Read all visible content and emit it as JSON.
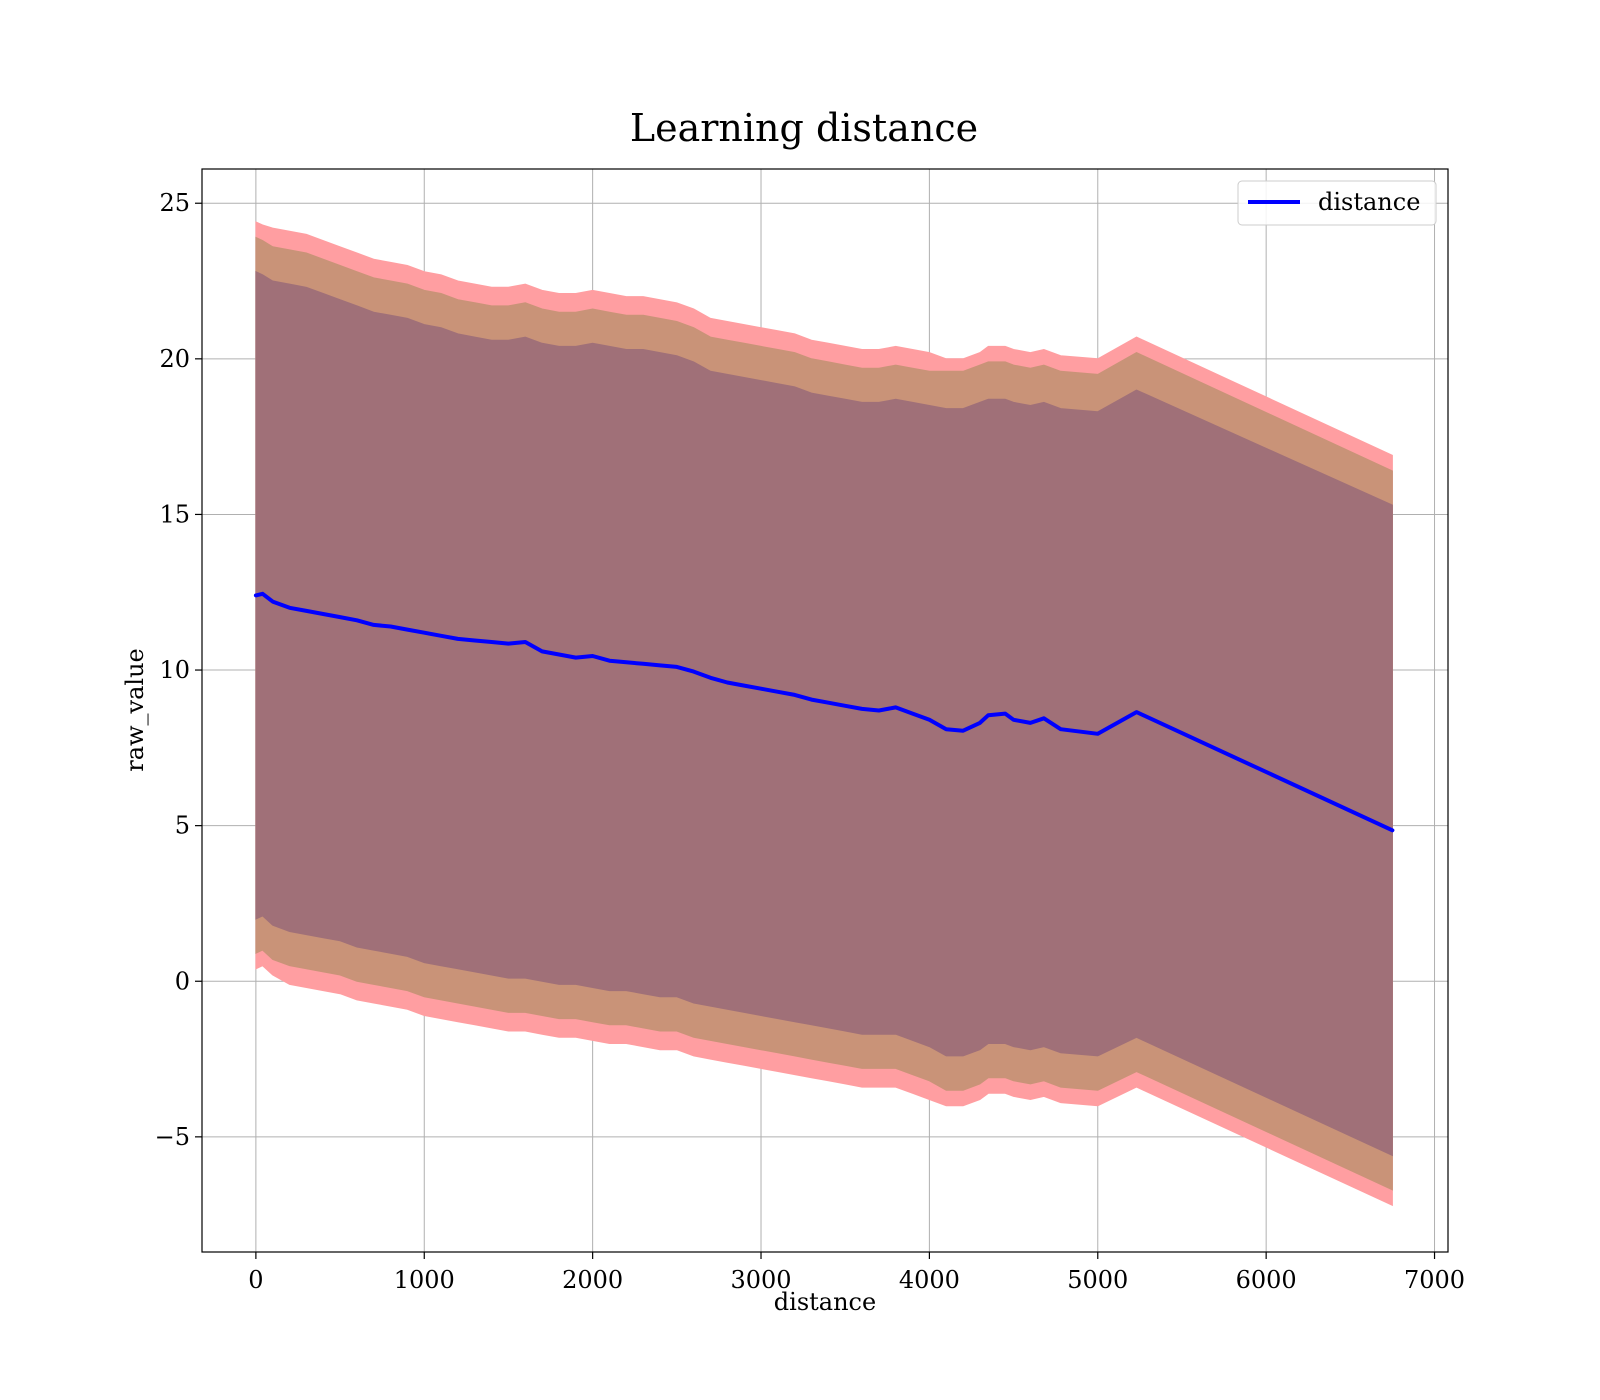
{
  "chart_data": {
    "type": "line",
    "title": "Learning distance",
    "xlabel": "distance",
    "ylabel": "raw_value",
    "xlim": [
      -320,
      7080
    ],
    "ylim": [
      -8.7,
      26.1
    ],
    "xticks": [
      0,
      1000,
      2000,
      3000,
      4000,
      5000,
      6000,
      7000
    ],
    "xtick_labels": [
      "0",
      "1000",
      "2000",
      "3000",
      "4000",
      "5000",
      "6000",
      "7000"
    ],
    "yticks": [
      -5,
      0,
      5,
      10,
      15,
      20,
      25
    ],
    "ytick_labels": [
      "−5",
      "0",
      "5",
      "10",
      "15",
      "20",
      "25"
    ],
    "grid": true,
    "legend": {
      "placement": "top-right",
      "entries": [
        "distance"
      ]
    },
    "colors": {
      "line": "#0000ff",
      "band_outer": "#ff9ea1",
      "band_middle": "#c99378",
      "band_inner": "#a07078",
      "grid": "#b0b0b0"
    },
    "x": [
      0,
      40,
      100,
      200,
      300,
      400,
      500,
      600,
      700,
      800,
      900,
      1000,
      1100,
      1200,
      1300,
      1400,
      1500,
      1600,
      1700,
      1800,
      1900,
      2000,
      2100,
      2200,
      2300,
      2400,
      2500,
      2600,
      2700,
      2800,
      2900,
      3000,
      3100,
      3200,
      3300,
      3400,
      3500,
      3600,
      3700,
      3800,
      3900,
      4000,
      4100,
      4200,
      4300,
      4350,
      4450,
      4500,
      4600,
      4680,
      4780,
      5000,
      5230,
      6750
    ],
    "series": [
      {
        "name": "distance",
        "values": [
          12.4,
          12.45,
          12.2,
          12.0,
          11.9,
          11.8,
          11.7,
          11.6,
          11.45,
          11.4,
          11.3,
          11.2,
          11.1,
          11.0,
          10.95,
          10.9,
          10.85,
          10.9,
          10.6,
          10.5,
          10.4,
          10.45,
          10.3,
          10.25,
          10.2,
          10.15,
          10.1,
          9.95,
          9.75,
          9.6,
          9.5,
          9.4,
          9.3,
          9.2,
          9.05,
          8.95,
          8.85,
          8.75,
          8.7,
          8.8,
          8.6,
          8.4,
          8.1,
          8.05,
          8.3,
          8.55,
          8.6,
          8.4,
          8.3,
          8.45,
          8.1,
          7.95,
          8.65,
          4.85
        ]
      }
    ],
    "bands": [
      {
        "role": "outer",
        "upper": [
          24.4,
          24.3,
          24.2,
          24.1,
          24.0,
          23.8,
          23.6,
          23.4,
          23.2,
          23.1,
          23.0,
          22.8,
          22.7,
          22.5,
          22.4,
          22.3,
          22.3,
          22.4,
          22.2,
          22.1,
          22.1,
          22.2,
          22.1,
          22.0,
          22.0,
          21.9,
          21.8,
          21.6,
          21.3,
          21.2,
          21.1,
          21.0,
          20.9,
          20.8,
          20.6,
          20.5,
          20.4,
          20.3,
          20.3,
          20.4,
          20.3,
          20.2,
          20.0,
          20.0,
          20.2,
          20.4,
          20.4,
          20.3,
          20.2,
          20.3,
          20.1,
          20.0,
          20.7,
          16.9
        ],
        "lower": [
          0.4,
          0.5,
          0.2,
          -0.1,
          -0.2,
          -0.3,
          -0.4,
          -0.6,
          -0.7,
          -0.8,
          -0.9,
          -1.1,
          -1.2,
          -1.3,
          -1.4,
          -1.5,
          -1.6,
          -1.6,
          -1.7,
          -1.8,
          -1.8,
          -1.9,
          -2.0,
          -2.0,
          -2.1,
          -2.2,
          -2.2,
          -2.4,
          -2.5,
          -2.6,
          -2.7,
          -2.8,
          -2.9,
          -3.0,
          -3.1,
          -3.2,
          -3.3,
          -3.4,
          -3.4,
          -3.4,
          -3.6,
          -3.8,
          -4.0,
          -4.0,
          -3.8,
          -3.6,
          -3.6,
          -3.7,
          -3.8,
          -3.7,
          -3.9,
          -4.0,
          -3.4,
          -7.2
        ]
      },
      {
        "role": "middle",
        "upper": [
          23.9,
          23.8,
          23.6,
          23.5,
          23.4,
          23.2,
          23.0,
          22.8,
          22.6,
          22.5,
          22.4,
          22.2,
          22.1,
          21.9,
          21.8,
          21.7,
          21.7,
          21.8,
          21.6,
          21.5,
          21.5,
          21.6,
          21.5,
          21.4,
          21.4,
          21.3,
          21.2,
          21.0,
          20.7,
          20.6,
          20.5,
          20.4,
          20.3,
          20.2,
          20.0,
          19.9,
          19.8,
          19.7,
          19.7,
          19.8,
          19.7,
          19.6,
          19.6,
          19.6,
          19.8,
          19.9,
          19.9,
          19.8,
          19.7,
          19.8,
          19.6,
          19.5,
          20.2,
          16.4
        ],
        "lower": [
          0.9,
          1.0,
          0.7,
          0.5,
          0.4,
          0.3,
          0.2,
          0.0,
          -0.1,
          -0.2,
          -0.3,
          -0.5,
          -0.6,
          -0.7,
          -0.8,
          -0.9,
          -1.0,
          -1.0,
          -1.1,
          -1.2,
          -1.2,
          -1.3,
          -1.4,
          -1.4,
          -1.5,
          -1.6,
          -1.6,
          -1.8,
          -1.9,
          -2.0,
          -2.1,
          -2.2,
          -2.3,
          -2.4,
          -2.5,
          -2.6,
          -2.7,
          -2.8,
          -2.8,
          -2.8,
          -3.0,
          -3.2,
          -3.5,
          -3.5,
          -3.3,
          -3.1,
          -3.1,
          -3.2,
          -3.3,
          -3.2,
          -3.4,
          -3.5,
          -2.9,
          -6.7
        ]
      },
      {
        "role": "inner",
        "upper": [
          22.8,
          22.7,
          22.5,
          22.4,
          22.3,
          22.1,
          21.9,
          21.7,
          21.5,
          21.4,
          21.3,
          21.1,
          21.0,
          20.8,
          20.7,
          20.6,
          20.6,
          20.7,
          20.5,
          20.4,
          20.4,
          20.5,
          20.4,
          20.3,
          20.3,
          20.2,
          20.1,
          19.9,
          19.6,
          19.5,
          19.4,
          19.3,
          19.2,
          19.1,
          18.9,
          18.8,
          18.7,
          18.6,
          18.6,
          18.7,
          18.6,
          18.5,
          18.4,
          18.4,
          18.6,
          18.7,
          18.7,
          18.6,
          18.5,
          18.6,
          18.4,
          18.3,
          19.0,
          15.3
        ],
        "lower": [
          2.0,
          2.1,
          1.8,
          1.6,
          1.5,
          1.4,
          1.3,
          1.1,
          1.0,
          0.9,
          0.8,
          0.6,
          0.5,
          0.4,
          0.3,
          0.2,
          0.1,
          0.1,
          0.0,
          -0.1,
          -0.1,
          -0.2,
          -0.3,
          -0.3,
          -0.4,
          -0.5,
          -0.5,
          -0.7,
          -0.8,
          -0.9,
          -1.0,
          -1.1,
          -1.2,
          -1.3,
          -1.4,
          -1.5,
          -1.6,
          -1.7,
          -1.7,
          -1.7,
          -1.9,
          -2.1,
          -2.4,
          -2.4,
          -2.2,
          -2.0,
          -2.0,
          -2.1,
          -2.2,
          -2.1,
          -2.3,
          -2.4,
          -1.8,
          -5.6
        ]
      }
    ]
  }
}
